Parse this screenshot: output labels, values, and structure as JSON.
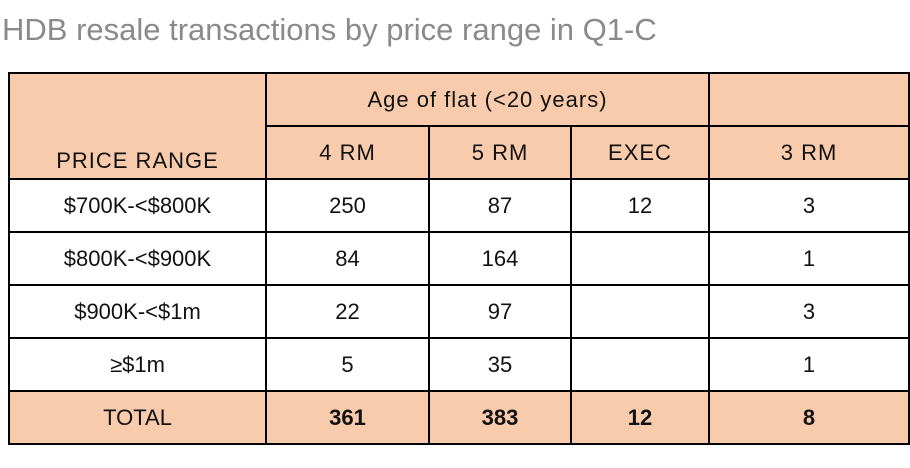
{
  "title": "HDB resale transactions by price range in Q1-C",
  "table": {
    "header": {
      "price_range": "PRICE RANGE",
      "group": "Age of flat (<20 years)",
      "columns": [
        "4 RM",
        "5 RM",
        "EXEC",
        "3 RM"
      ]
    },
    "rows": [
      [
        "$700K-<$800K",
        250,
        87,
        12,
        3
      ],
      [
        "$800K-<$900K",
        84,
        164,
        null,
        1
      ],
      [
        "$900K-<$1m",
        22,
        97,
        null,
        3
      ],
      [
        "≥$1m",
        5,
        35,
        null,
        1
      ]
    ],
    "total": [
      "TOTAL",
      361,
      383,
      12,
      8
    ]
  }
}
